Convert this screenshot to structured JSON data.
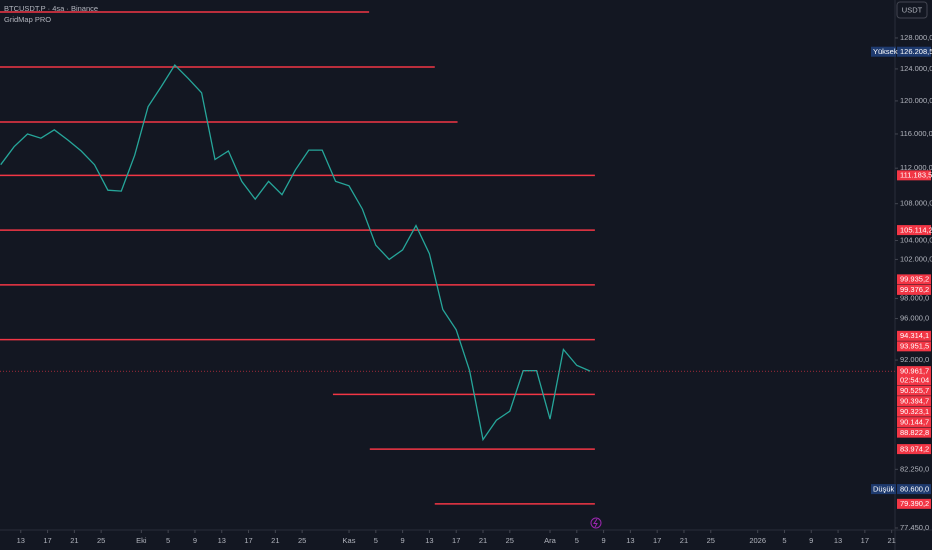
{
  "chart_data": {
    "type": "line",
    "title": "BTCUSDT.P · 4sa · Binance",
    "subtitle": "GridMap PRO",
    "currency": "USDT",
    "log_scale": true,
    "xlim": [
      9.9,
      143.5
    ],
    "ylim": [
      77290,
      133080
    ],
    "xticks": [
      {
        "value": 13,
        "label": "13"
      },
      {
        "value": 17,
        "label": "17"
      },
      {
        "value": 21,
        "label": "21"
      },
      {
        "value": 25,
        "label": "25"
      },
      {
        "value": 31,
        "label": "Eki"
      },
      {
        "value": 35,
        "label": "5"
      },
      {
        "value": 39,
        "label": "9"
      },
      {
        "value": 43,
        "label": "13"
      },
      {
        "value": 47,
        "label": "17"
      },
      {
        "value": 51,
        "label": "21"
      },
      {
        "value": 55,
        "label": "25"
      },
      {
        "value": 62,
        "label": "Kas"
      },
      {
        "value": 66,
        "label": "5"
      },
      {
        "value": 70,
        "label": "9"
      },
      {
        "value": 74,
        "label": "13"
      },
      {
        "value": 78,
        "label": "17"
      },
      {
        "value": 82,
        "label": "21"
      },
      {
        "value": 86,
        "label": "25"
      },
      {
        "value": 92,
        "label": "Ara"
      },
      {
        "value": 96,
        "label": "5"
      },
      {
        "value": 100,
        "label": "9"
      },
      {
        "value": 104,
        "label": "13"
      },
      {
        "value": 108,
        "label": "17"
      },
      {
        "value": 112,
        "label": "21"
      },
      {
        "value": 116,
        "label": "25"
      },
      {
        "value": 123,
        "label": "2026"
      },
      {
        "value": 127,
        "label": "5"
      },
      {
        "value": 131,
        "label": "9"
      },
      {
        "value": 135,
        "label": "13"
      },
      {
        "value": 139,
        "label": "17"
      },
      {
        "value": 143,
        "label": "21"
      }
    ],
    "yticks": [
      {
        "value": 128000,
        "label": "128.000,0"
      },
      {
        "value": 124000,
        "label": "124.000,0"
      },
      {
        "value": 120000,
        "label": "120.000,0"
      },
      {
        "value": 116000,
        "label": "116.000,0"
      },
      {
        "value": 112000,
        "label": "112.000,0"
      },
      {
        "value": 108000,
        "label": "108.000,0"
      },
      {
        "value": 104000,
        "label": "104.000,0"
      },
      {
        "value": 102000,
        "label": "102.000,0"
      },
      {
        "value": 98000,
        "label": "98.000,0"
      },
      {
        "value": 96000,
        "label": "96.000,0"
      },
      {
        "value": 92000,
        "label": "92.000,0"
      },
      {
        "value": 82250,
        "label": "82.250,0"
      },
      {
        "value": 77450,
        "label": "77.450,0"
      }
    ],
    "x": [
      10,
      12,
      14,
      16,
      18,
      20,
      22,
      24,
      26,
      28,
      30,
      32,
      34,
      36,
      38,
      40,
      42,
      44,
      46,
      48,
      50,
      52,
      54,
      56,
      58,
      60,
      62,
      64,
      66,
      68,
      70,
      72,
      74,
      76,
      78,
      80,
      82,
      84,
      86,
      88,
      90,
      92,
      94,
      96,
      98
    ],
    "series": [
      {
        "color": "#26a69a",
        "values": [
          112400,
          114500,
          116000,
          115500,
          116500,
          115300,
          114000,
          112400,
          109500,
          109400,
          113500,
          119300,
          121800,
          124500,
          122800,
          121000,
          113000,
          114000,
          110500,
          108500,
          110500,
          109000,
          111800,
          114100,
          114100,
          110500,
          110000,
          107400,
          103500,
          102000,
          103000,
          105600,
          102600,
          96900,
          94900,
          91000,
          84800,
          86500,
          87300,
          91000,
          91000,
          86600,
          93000,
          91500,
          90961.7
        ]
      }
    ],
    "levels": [
      {
        "value": 131458,
        "end": 65
      },
      {
        "value": 124250,
        "end": 74.8
      },
      {
        "value": 117440,
        "end": 78.2
      },
      {
        "value": 111183.5,
        "end": 98.7
      },
      {
        "value": 105114.2,
        "end": 98.7
      },
      {
        "value": 99376.2,
        "end": 98.7
      },
      {
        "value": 93951.5,
        "end": 98.7
      },
      {
        "value": 88822.8,
        "start": 59.6,
        "end": 98.7
      },
      {
        "value": 83974.2,
        "start": 65.1,
        "end": 98.7
      },
      {
        "value": 79390.2,
        "start": 74.8,
        "end": 98.7
      }
    ],
    "level_color": "#f23645",
    "price_labels": [
      {
        "value": 126208.5,
        "label": "126.208,5",
        "tag": "Yüksek",
        "color": "#1e3a6e"
      },
      {
        "value": 111183.5,
        "label": "111.183,5",
        "color": "#f23645"
      },
      {
        "value": 105114.2,
        "label": "105.114,2",
        "color": "#f23645"
      },
      {
        "value": 99935.2,
        "label": "99.935,2",
        "color": "#f23645"
      },
      {
        "value": 99376.2,
        "label": "99.376,2",
        "color": "#f23645"
      },
      {
        "value": 94314.1,
        "label": "94.314,1",
        "color": "#f23645"
      },
      {
        "value": 93951.5,
        "label": "93.951,5",
        "color": "#f23645"
      },
      {
        "value": 90961.7,
        "label": "90.961,7",
        "countdown": "02:54:04",
        "color": "#f23645"
      },
      {
        "value": 90525.7,
        "label": "90.525,7",
        "color": "#f23645"
      },
      {
        "value": 90394.7,
        "label": "90.394,7",
        "color": "#f23645"
      },
      {
        "value": 90323.1,
        "label": "90.323,1",
        "color": "#f23645"
      },
      {
        "value": 90144.7,
        "label": "90.144,7",
        "color": "#f23645"
      },
      {
        "value": 88822.8,
        "label": "88.822,8",
        "color": "#f23645"
      },
      {
        "value": 83974.2,
        "label": "83.974,2",
        "color": "#f23645"
      },
      {
        "value": 80600.0,
        "label": "80.600,0",
        "tag": "Düşük",
        "color": "#1e3a6e"
      },
      {
        "value": 79390.2,
        "label": "79.390,2",
        "color": "#f23645"
      }
    ]
  }
}
